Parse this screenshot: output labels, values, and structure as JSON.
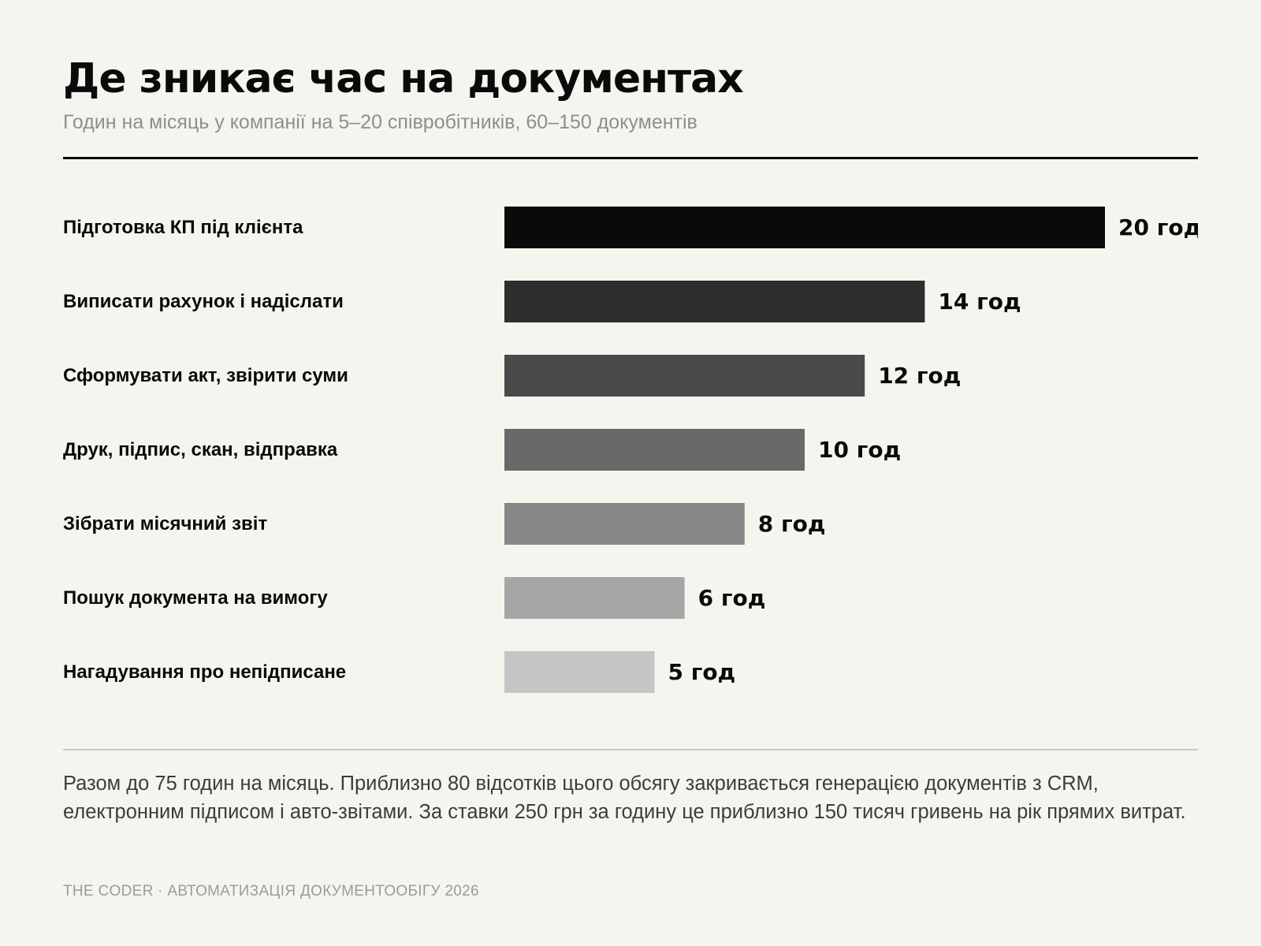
{
  "header": {
    "title": "Де зникає час на документах",
    "subtitle": "Годин на місяць у компанії на 5–20 співробітників, 60–150 документів"
  },
  "chart_data": {
    "type": "bar",
    "orientation": "horizontal",
    "categories": [
      "Підготовка КП під клієнта",
      "Виписати рахунок і надіслати",
      "Сформувати акт, звірити суми",
      "Друк, підпис, скан, відправка",
      "Зібрати місячний звіт",
      "Пошук документа на вимогу",
      "Нагадування про непідписане"
    ],
    "values": [
      20,
      14,
      12,
      10,
      8,
      6,
      5
    ],
    "value_labels": [
      "20 год",
      "14 год",
      "12 год",
      "10 год",
      "8 год",
      "6 год",
      "5 год"
    ],
    "bar_colors": [
      "#0a0a0a",
      "#2d2d2d",
      "#4a4a4a",
      "#696969",
      "#888888",
      "#a6a6a6",
      "#c5c5c5"
    ],
    "xlim": [
      0,
      20
    ],
    "grid": false,
    "legend": false
  },
  "note": "Разом до 75 годин на місяць. Приблизно 80 відсотків цього обсягу закривається генерацією документів з CRM, електронним підписом і авто-звітами. За ставки 250 грн за годину це приблизно 150 тисяч гривень на рік прямих витрат.",
  "footer": "THE CODER · АВТОМАТИЗАЦІЯ ДОКУМЕНТООБІГУ 2026"
}
